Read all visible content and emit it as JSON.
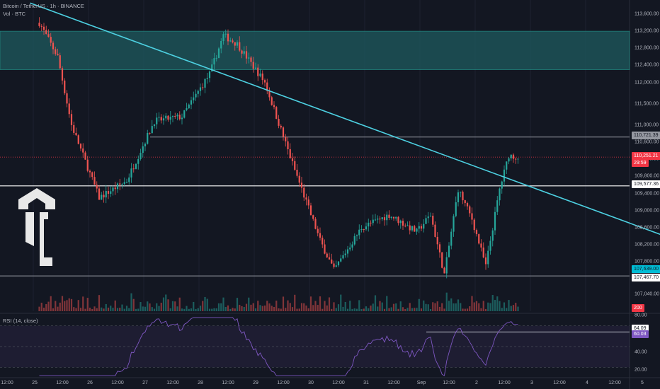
{
  "header": {
    "symbol": "Bitcoin / TetherUS · 1h · BINANCE",
    "volume_label": "Vol · BTC"
  },
  "rsi_panel": {
    "title": "RSI (14, close)",
    "value_a": "64.09",
    "value_b": "60.03",
    "ticks": [
      "80.00",
      "40.00",
      "20.00"
    ]
  },
  "price_axis": {
    "ticks": [
      "113,600.00",
      "113,200.00",
      "112,800.00",
      "112,400.00",
      "112,000.00",
      "111,500.00",
      "111,000.00",
      "110,600.00",
      "110,200.00",
      "109,800.00",
      "109,400.00",
      "109,000.00",
      "108,600.00",
      "108,200.00",
      "107,800.00",
      "107,040.00"
    ],
    "labels": {
      "resistance": "110,721.39",
      "current": "110,251.21",
      "countdown": "29:59",
      "level_mid": "109,577.36",
      "level_cyan": "107,639.00",
      "level_low": "107,467.70",
      "volume": "200"
    }
  },
  "time_axis": {
    "ticks": [
      "12:00",
      "25",
      "12:00",
      "26",
      "12:00",
      "27",
      "12:00",
      "28",
      "12:00",
      "29",
      "12:00",
      "30",
      "12:00",
      "31",
      "12:00",
      "Sep",
      "12:00",
      "2",
      "12:00",
      "3",
      "12:00",
      "4",
      "12:00",
      "5"
    ]
  },
  "colors": {
    "background": "#131722",
    "up": "#26a69a",
    "down": "#ef5350",
    "trendline": "#4dd0e1",
    "zone": "#1e5a5f",
    "resistance_line": "#9598a1",
    "level_line": "#ffffff",
    "current_tag": "#f23645",
    "cyan_tag": "#00bcd4",
    "rsi_line": "#7e57c2"
  },
  "chart_data": {
    "type": "candlestick",
    "symbol": "BTCUSDT",
    "interval": "1h",
    "ylim": [
      106900,
      113750
    ],
    "resistance_zone": [
      112300,
      113200
    ],
    "horizontal_levels": [
      110721.39,
      109577.36,
      107467.7
    ],
    "trendline": {
      "from": [
        "Aug 24 18:00",
        113860
      ],
      "to": [
        "Sep 5 12:00",
        108280
      ]
    },
    "current_price": 110251.21,
    "rsi": {
      "period": 14,
      "ylim": [
        20,
        80
      ],
      "last": [
        64.09,
        60.03
      ]
    },
    "close_path": [
      {
        "t": "Aug 24 22:00",
        "close": 113400
      },
      {
        "t": "Aug 25 06:00",
        "close": 112600
      },
      {
        "t": "Aug 25 12:00",
        "close": 111000
      },
      {
        "t": "Aug 26 00:00",
        "close": 109300
      },
      {
        "t": "Aug 26 12:00",
        "close": 109700
      },
      {
        "t": "Aug 27 00:00",
        "close": 111100
      },
      {
        "t": "Aug 27 12:00",
        "close": 111200
      },
      {
        "t": "Aug 28 00:00",
        "close": 112200
      },
      {
        "t": "Aug 28 06:00",
        "close": 113100
      },
      {
        "t": "Aug 28 12:00",
        "close": 112900
      },
      {
        "t": "Aug 29 00:00",
        "close": 112000
      },
      {
        "t": "Aug 29 12:00",
        "close": 110100
      },
      {
        "t": "Aug 30 00:00",
        "close": 108300
      },
      {
        "t": "Aug 30 06:00",
        "close": 107600
      },
      {
        "t": "Aug 30 18:00",
        "close": 108600
      },
      {
        "t": "Aug 31 06:00",
        "close": 108900
      },
      {
        "t": "Aug 31 18:00",
        "close": 108500
      },
      {
        "t": "Sep 1 00:00",
        "close": 108900
      },
      {
        "t": "Sep 1 06:00",
        "close": 107500
      },
      {
        "t": "Sep 1 12:00",
        "close": 109500
      },
      {
        "t": "Sep 1 18:00",
        "close": 108800
      },
      {
        "t": "Sep 2 00:00",
        "close": 107700
      },
      {
        "t": "Sep 2 06:00",
        "close": 109500
      },
      {
        "t": "Sep 2 10:00",
        "close": 110300
      },
      {
        "t": "Sep 2 14:00",
        "close": 110251.21
      }
    ]
  }
}
